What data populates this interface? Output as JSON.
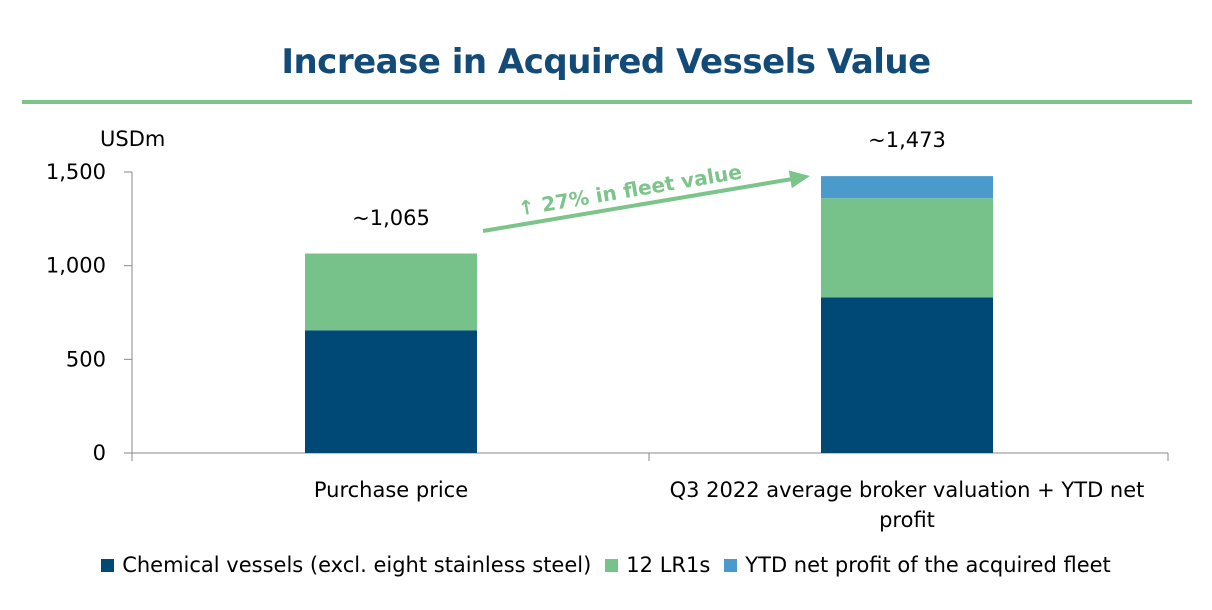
{
  "title": "Increase in Acquired Vessels Value",
  "colors": {
    "title": "#124A78",
    "rule": "#7CC48A",
    "chemical": "#004876",
    "lr1": "#77C18A",
    "profit": "#4A9ACC",
    "arrow": "#7CC48A"
  },
  "chart_data": {
    "type": "bar",
    "stacked": true,
    "unit_label": "USDm",
    "categories": [
      "Purchase price",
      "Q3 2022 average broker valuation + YTD net profit"
    ],
    "series": [
      {
        "name": "Chemical vessels (excl. eight stainless steel)",
        "values": [
          655,
          830
        ]
      },
      {
        "name": "12 LR1s",
        "values": [
          410,
          530
        ]
      },
      {
        "name": "YTD net profit of the acquired fleet",
        "values": [
          0,
          118
        ]
      }
    ],
    "totals_labels": [
      "~1,065",
      "~1,473"
    ],
    "ylim": [
      0,
      1500
    ],
    "yticks": [
      0,
      500,
      1000,
      1500
    ],
    "ytick_labels": [
      "0",
      "500",
      "1,000",
      "1,500"
    ],
    "annotation": "↑ 27% in fleet value",
    "legend_position": "bottom",
    "grid": false
  }
}
